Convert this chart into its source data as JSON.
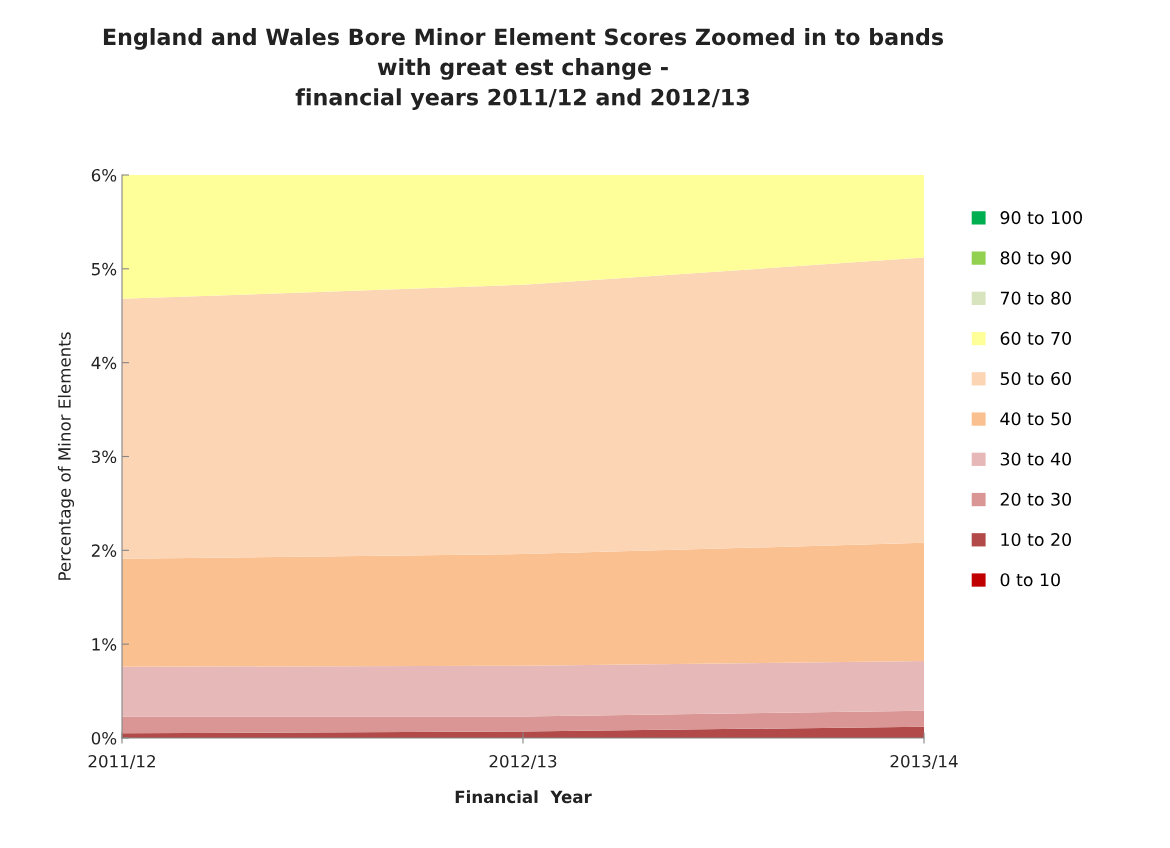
{
  "chart_data": {
    "type": "area",
    "stacked": true,
    "title": "England and Wales Bore Minor Element Scores Zoomed in to bands\nwith great est change -\nfinancial years 2011/12 and 2012/13",
    "xlabel": "Financial  Year",
    "ylabel": "Percentage of Minor Elements",
    "categories": [
      "2011/12",
      "2012/13",
      "2013/14"
    ],
    "ylim": [
      0,
      6
    ],
    "yticks": [
      {
        "value": 0,
        "label": "0%"
      },
      {
        "value": 1,
        "label": "1%"
      },
      {
        "value": 2,
        "label": "2%"
      },
      {
        "value": 3,
        "label": "3%"
      },
      {
        "value": 4,
        "label": "4%"
      },
      {
        "value": 5,
        "label": "5%"
      },
      {
        "value": 6,
        "label": "6%"
      }
    ],
    "grid": false,
    "legend": "right",
    "series": [
      {
        "name": "0 to 10",
        "color": "#c00000",
        "values": [
          null,
          null,
          null
        ]
      },
      {
        "name": "10 to 20",
        "color": "#b14a48",
        "values": [
          0.05,
          0.07,
          0.12
        ]
      },
      {
        "name": "20 to 30",
        "color": "#d99694",
        "values": [
          0.18,
          0.16,
          0.17
        ]
      },
      {
        "name": "30 to 40",
        "color": "#e6b9b8",
        "values": [
          0.53,
          0.54,
          0.53
        ]
      },
      {
        "name": "40 to 50",
        "color": "#fac090",
        "values": [
          1.15,
          1.19,
          1.26
        ]
      },
      {
        "name": "50 to 60",
        "color": "#fcd5b5",
        "values": [
          2.77,
          2.87,
          3.04
        ]
      },
      {
        "name": "60 to 70",
        "color": "#ffff99",
        "values": [
          1.32,
          1.17,
          0.88
        ]
      },
      {
        "name": "70 to 80",
        "color": "#d7e4bd",
        "values": [
          null,
          null,
          null
        ]
      },
      {
        "name": "80 to 90",
        "color": "#92d050",
        "values": [
          null,
          null,
          null
        ]
      },
      {
        "name": "90 to 100",
        "color": "#00b050",
        "values": [
          null,
          null,
          null
        ]
      }
    ]
  }
}
